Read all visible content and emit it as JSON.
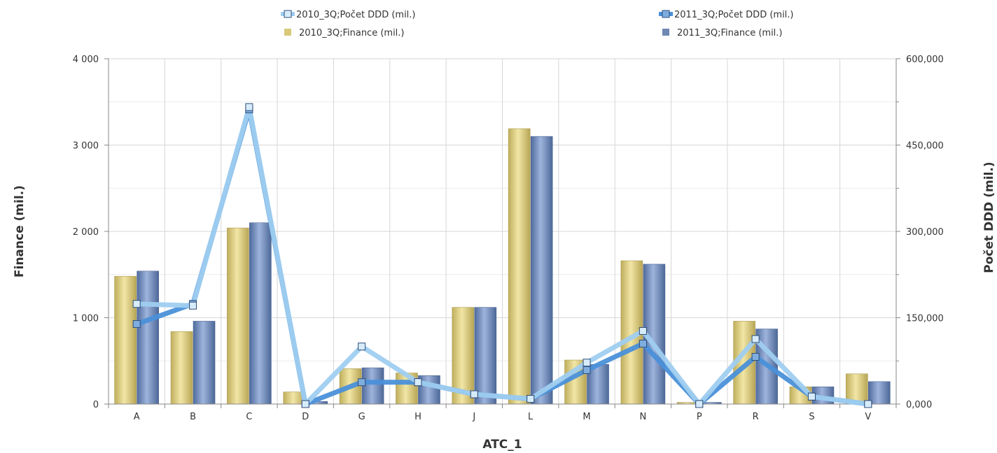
{
  "chart_data": {
    "type": "bar",
    "categories": [
      "A",
      "B",
      "C",
      "D",
      "G",
      "H",
      "J",
      "L",
      "M",
      "N",
      "P",
      "R",
      "S",
      "V"
    ],
    "xlabel": "ATC_1",
    "ylabel_left": "Finance (mil.)",
    "ylabel_right": "Počet DDD (mil.)",
    "ylim_left": [
      0,
      4000
    ],
    "ylim_right": [
      0,
      600000
    ],
    "yticks_left": [
      "0",
      "1 000",
      "2 000",
      "3 000",
      "4 000"
    ],
    "yticks_left_values": [
      0,
      1000,
      2000,
      3000,
      4000
    ],
    "yticks_right": [
      "0,000",
      "150,000",
      "300,000",
      "450,000",
      "600,000"
    ],
    "yticks_right_values": [
      0,
      150000,
      300000,
      450000,
      600000
    ],
    "grid": true,
    "legend_position": "top",
    "series": [
      {
        "name": "2010_3Q;Finance (mil.)",
        "kind": "bar",
        "axis": "left",
        "color": "#d8c878",
        "values": [
          1480,
          840,
          2040,
          140,
          410,
          360,
          1120,
          3190,
          510,
          1660,
          20,
          960,
          200,
          350
        ]
      },
      {
        "name": "2011_3Q;Finance (mil.)",
        "kind": "bar",
        "axis": "left",
        "color": "#6f88b4",
        "values": [
          1540,
          960,
          2100,
          30,
          420,
          330,
          1120,
          3100,
          460,
          1620,
          20,
          870,
          200,
          260
        ]
      },
      {
        "name": "2010_3Q;Počet DDD (mil.)",
        "kind": "line",
        "axis": "right",
        "color": "#9fcdf0",
        "values": [
          174000,
          171000,
          516000,
          0,
          100000,
          38000,
          17000,
          9000,
          72000,
          127000,
          0,
          113000,
          13000,
          0
        ]
      },
      {
        "name": "2011_3Q;Počet DDD (mil.)",
        "kind": "line",
        "axis": "right",
        "color": "#4a90d9",
        "values": [
          139000,
          174000,
          512000,
          0,
          38000,
          38000,
          17000,
          9000,
          59000,
          105000,
          0,
          82000,
          13000,
          0
        ]
      }
    ]
  }
}
